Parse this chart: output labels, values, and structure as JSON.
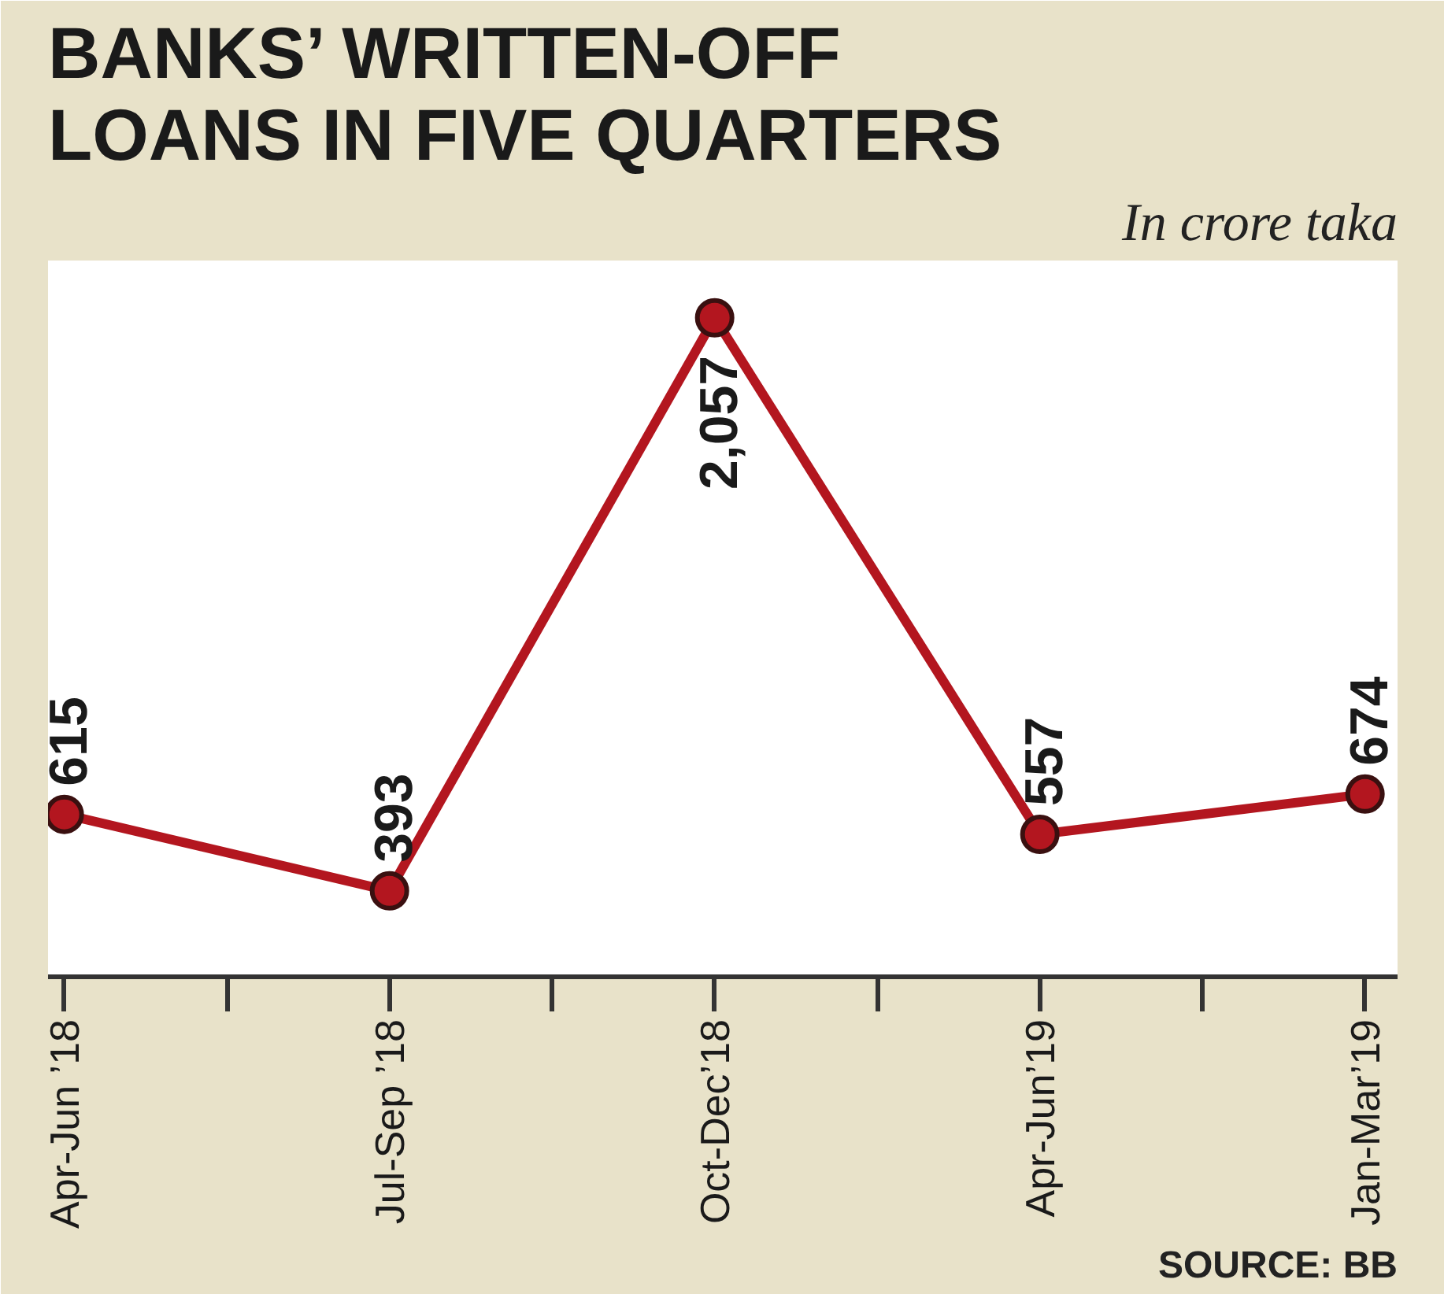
{
  "chart_data": {
    "type": "line",
    "title": "BANKS’ WRITTEN-OFF\nLOANS IN FIVE QUARTERS",
    "subtitle": "In crore taka",
    "categories": [
      "Apr-Jun ’18",
      "Jul-Sep ’18",
      "Oct-Dec’18",
      "Apr-Jun’19",
      "Jan-Mar’19"
    ],
    "series": [
      {
        "color": "#b3161f",
        "values": [
          615,
          393,
          2057,
          557,
          674
        ],
        "value_labels": [
          "615",
          "393",
          "2,057",
          "557",
          "674"
        ]
      }
    ],
    "marker": "circle",
    "line_style": "solid",
    "grid": false,
    "annotations": [
      "SOURCE: BB"
    ]
  }
}
